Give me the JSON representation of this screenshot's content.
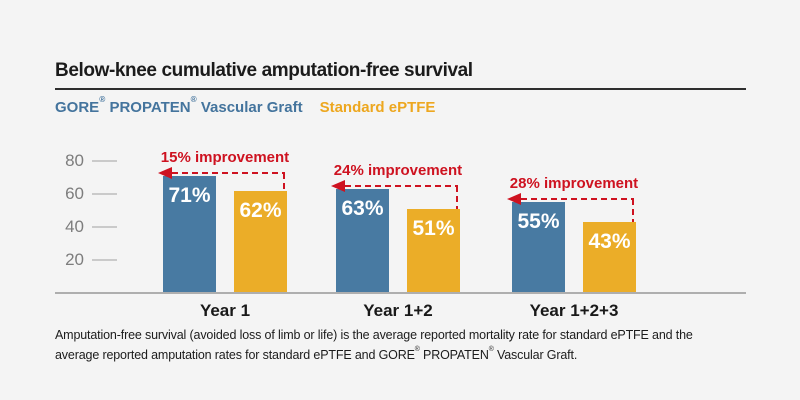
{
  "header": {
    "title": "Below-knee cumulative amputation-free survival"
  },
  "legend": {
    "items": [
      {
        "label": "GORE® PROPATEN® Vascular Graft",
        "color": "#44749D"
      },
      {
        "label": "Standard ePTFE",
        "color": "#EDA71F"
      }
    ]
  },
  "chart_data": {
    "type": "bar",
    "title": "Below-knee cumulative amputation-free survival",
    "categories": [
      "Year 1",
      "Year 1+2",
      "Year 1+2+3"
    ],
    "series": [
      {
        "name": "GORE® PROPATEN® Vascular Graft",
        "values": [
          71,
          63,
          55
        ],
        "color": "#487AA2"
      },
      {
        "name": "Standard ePTFE",
        "values": [
          62,
          51,
          43
        ],
        "color": "#EBAD28"
      }
    ],
    "value_label_suffix": "%",
    "annotations": [
      {
        "label": "15% improvement"
      },
      {
        "label": "24% improvement"
      },
      {
        "label": "28% improvement"
      }
    ],
    "annotation_color": "#CE1220",
    "yticks": [
      20,
      40,
      60,
      80
    ],
    "ylim": [
      0,
      88
    ],
    "xlabel": "",
    "ylabel": "",
    "grid": false,
    "legend_position": "top-left"
  },
  "footnote": {
    "lines": [
      "Amputation-free survival (avoided loss of limb or life) is the average reported mortality rate for standard ePTFE and the",
      "average reported amputation rates for standard ePTFE and GORE® PROPATEN® Vascular Graft."
    ]
  },
  "colors": {
    "background": "#F4F4F4",
    "propaten_blue": "#487AA2",
    "eptfe_orange": "#EBAD28",
    "improvement_red": "#CE1220"
  }
}
